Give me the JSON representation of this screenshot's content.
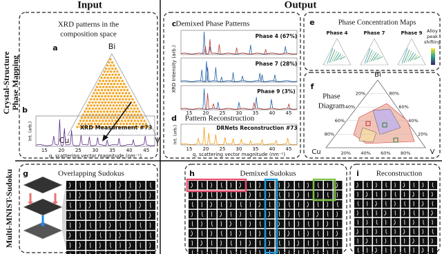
{
  "headers": {
    "input": "Input",
    "output": "Output"
  },
  "row_labels": {
    "crystal": [
      "Crystal-Structure",
      "Phase Mapping"
    ],
    "sudoku": "Multi-MNIST-Sudoku"
  },
  "panels": {
    "a": {
      "label": "a",
      "title": [
        "XRD patterns in the",
        "composition space"
      ],
      "vertices": [
        "Bi",
        "Cu",
        "V"
      ]
    },
    "b": {
      "label": "b",
      "annotation": "XRD Measurement #73",
      "ylabel": "Int. (arb.)",
      "xlabel": "q, scattering vector magnitude (nm⁻¹)",
      "xticks": [
        15,
        20,
        25,
        30,
        35,
        40,
        45
      ]
    },
    "c": {
      "label": "c",
      "title": "Demixed Phase Patterns",
      "phases": [
        "Phase 4 (67%)",
        "Phase 7 (28%)",
        "Phase 9 (3%)"
      ],
      "ylabel": "XRD Intensity (arb.)",
      "xticks": [
        15,
        20,
        25,
        30,
        35,
        40,
        45
      ]
    },
    "d": {
      "label": "d",
      "title": "Pattern Reconstruction",
      "annotation": "DRNets Reconstruction #73",
      "ylabel": "Int. (arb.)",
      "xlabel": "q, scattering vector magnitude (nm⁻¹)",
      "xticks": [
        15,
        20,
        25,
        30,
        35,
        40,
        45
      ]
    },
    "e": {
      "label": "e",
      "title": "Phase Concentration Maps",
      "phases": [
        "Phase 4",
        "Phase 7",
        "Phase 9"
      ],
      "legend": [
        "Alloy",
        "peak",
        "shifting"
      ]
    },
    "f": {
      "label": "f",
      "title": [
        "Phase",
        "Diagram"
      ],
      "vertices": [
        "Bi",
        "Cu",
        "V"
      ],
      "percent_ticks": [
        "80%",
        "60%",
        "40%",
        "20%"
      ]
    },
    "g": {
      "label": "g",
      "title": "Overlapping Sudokus"
    },
    "h": {
      "label": "h",
      "title": "Demixed Sudokus"
    },
    "i": {
      "label": "i",
      "title": "Reconstruction"
    }
  }
}
